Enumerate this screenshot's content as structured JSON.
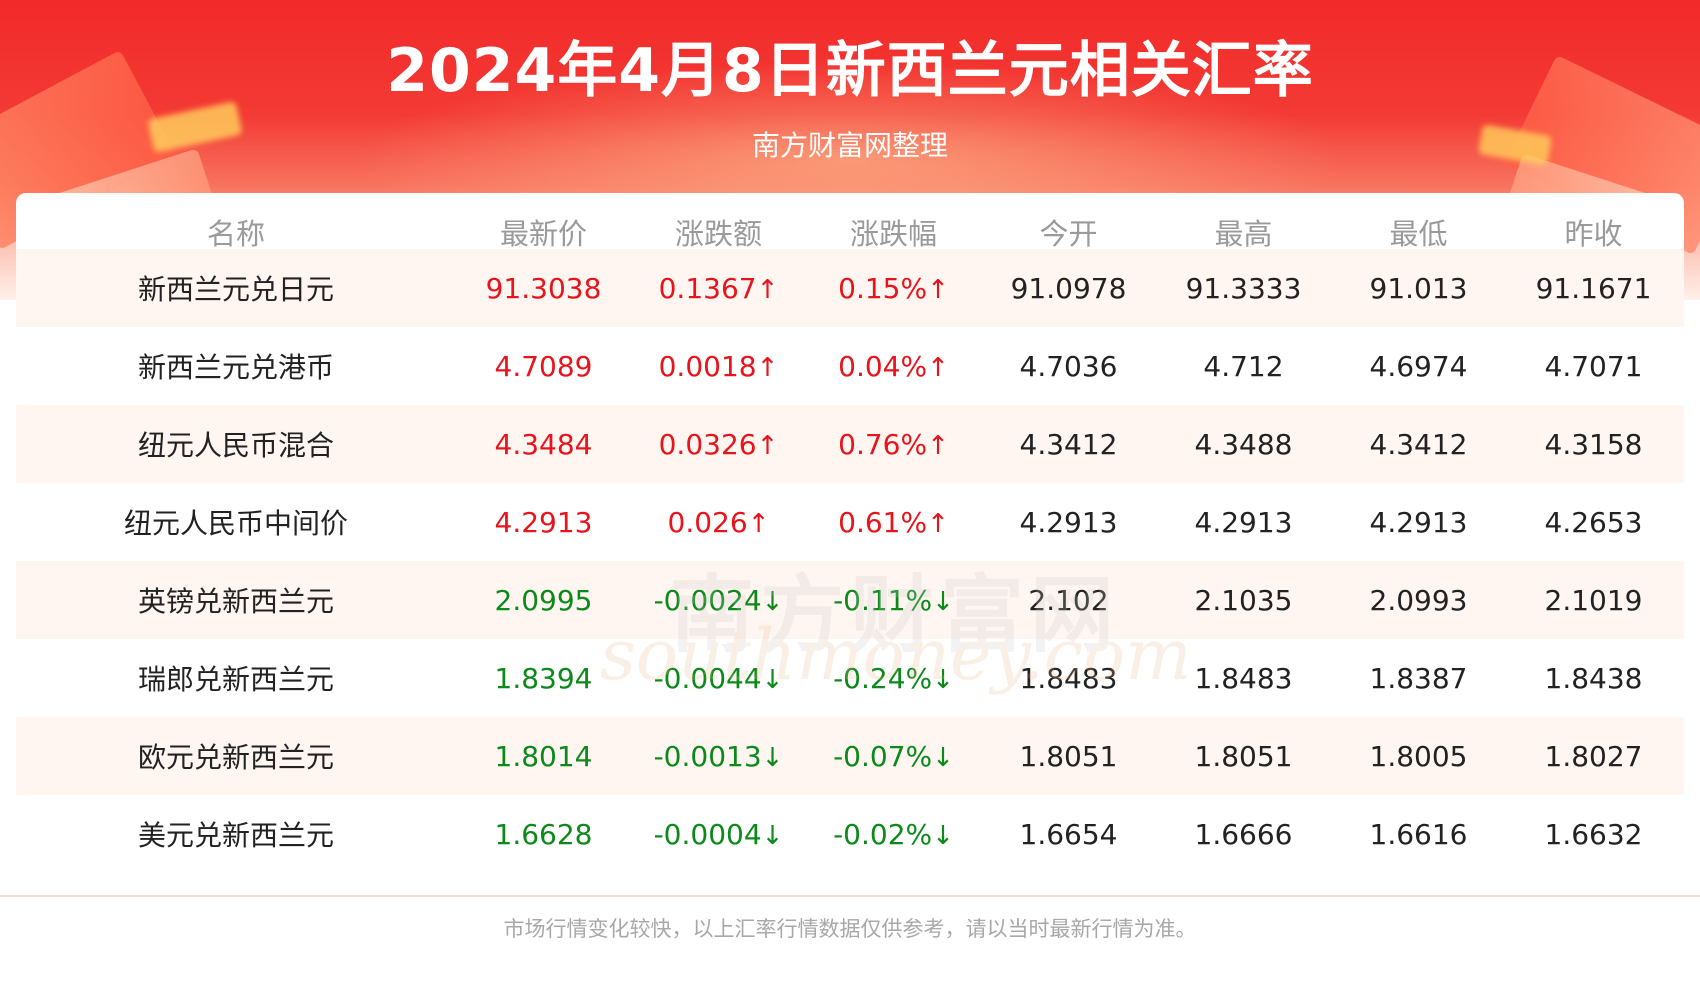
{
  "header": {
    "title": "2024年4月8日新西兰元相关汇率",
    "subtitle": "南方财富网整理"
  },
  "table": {
    "columns": [
      "名称",
      "最新价",
      "涨跌额",
      "涨跌幅",
      "今开",
      "最高",
      "最低",
      "昨收"
    ],
    "rows": [
      {
        "name": "新西兰元兑日元",
        "latest": "91.3038",
        "change": "0.1367",
        "change_pct": "0.15%",
        "open": "91.0978",
        "high": "91.3333",
        "low": "91.013",
        "prev_close": "91.1671",
        "direction": "up"
      },
      {
        "name": "新西兰元兑港币",
        "latest": "4.7089",
        "change": "0.0018",
        "change_pct": "0.04%",
        "open": "4.7036",
        "high": "4.712",
        "low": "4.6974",
        "prev_close": "4.7071",
        "direction": "up"
      },
      {
        "name": "纽元人民币混合",
        "latest": "4.3484",
        "change": "0.0326",
        "change_pct": "0.76%",
        "open": "4.3412",
        "high": "4.3488",
        "low": "4.3412",
        "prev_close": "4.3158",
        "direction": "up"
      },
      {
        "name": "纽元人民币中间价",
        "latest": "4.2913",
        "change": "0.026",
        "change_pct": "0.61%",
        "open": "4.2913",
        "high": "4.2913",
        "low": "4.2913",
        "prev_close": "4.2653",
        "direction": "up"
      },
      {
        "name": "英镑兑新西兰元",
        "latest": "2.0995",
        "change": "-0.0024",
        "change_pct": "-0.11%",
        "open": "2.102",
        "high": "2.1035",
        "low": "2.0993",
        "prev_close": "2.1019",
        "direction": "down"
      },
      {
        "name": "瑞郎兑新西兰元",
        "latest": "1.8394",
        "change": "-0.0044",
        "change_pct": "-0.24%",
        "open": "1.8483",
        "high": "1.8483",
        "low": "1.8387",
        "prev_close": "1.8438",
        "direction": "down"
      },
      {
        "name": "欧元兑新西兰元",
        "latest": "1.8014",
        "change": "-0.0013",
        "change_pct": "-0.07%",
        "open": "1.8051",
        "high": "1.8051",
        "low": "1.8005",
        "prev_close": "1.8027",
        "direction": "down"
      },
      {
        "name": "美元兑新西兰元",
        "latest": "1.6628",
        "change": "-0.0004",
        "change_pct": "-0.02%",
        "open": "1.6654",
        "high": "1.6666",
        "low": "1.6616",
        "prev_close": "1.6632",
        "direction": "down"
      }
    ]
  },
  "arrows": {
    "up": "↑",
    "down": "↓"
  },
  "colors": {
    "up": "#e8141b",
    "down": "#0b8a1a",
    "banner": "#f22a2a",
    "row_alt": "#fff6f2"
  },
  "watermark": {
    "cn": "南方财富网",
    "en": "southmoney.com"
  },
  "footer": {
    "note": "市场行情变化较快，以上汇率行情数据仅供参考，请以当时最新行情为准。"
  }
}
